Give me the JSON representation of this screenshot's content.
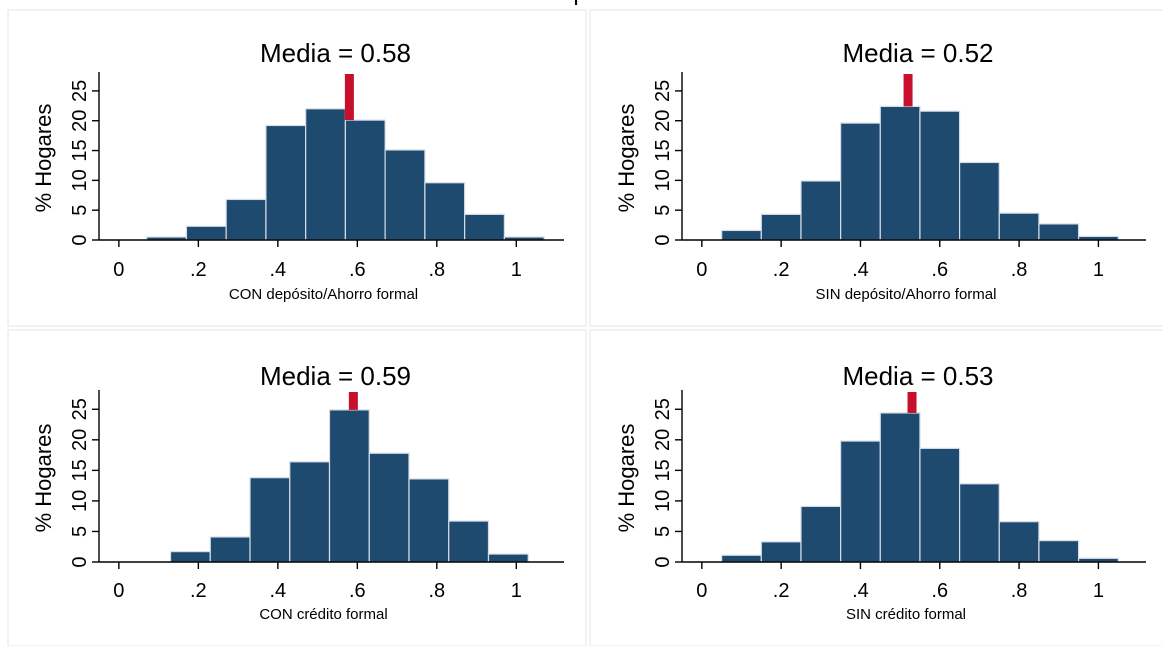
{
  "figure": {
    "top_title": "p",
    "colors": {
      "bar": "#1f4a70",
      "bar_edge": "#d6dde6",
      "mean_marker": "#c8102e",
      "panel_border": "#e6e6e6"
    }
  },
  "chart_data": [
    {
      "type": "bar",
      "title": "Media = 0.58",
      "xlabel": "CON depósito/Ahorro formal",
      "ylabel": "% Hogares",
      "x_ticks": [
        "0",
        ".2",
        ".4",
        ".6",
        ".8",
        "1"
      ],
      "y_ticks": [
        "0",
        "5",
        "10",
        "15",
        "20",
        "25"
      ],
      "xlim": [
        -0.05,
        1.12
      ],
      "ylim": [
        0,
        27.5
      ],
      "bins": [
        {
          "x0": 0.07,
          "x1": 0.17,
          "value": 0.5
        },
        {
          "x0": 0.17,
          "x1": 0.27,
          "value": 2.3
        },
        {
          "x0": 0.27,
          "x1": 0.37,
          "value": 6.8
        },
        {
          "x0": 0.37,
          "x1": 0.47,
          "value": 19.2
        },
        {
          "x0": 0.47,
          "x1": 0.57,
          "value": 22.0
        },
        {
          "x0": 0.57,
          "x1": 0.67,
          "value": 20.1
        },
        {
          "x0": 0.67,
          "x1": 0.77,
          "value": 15.1
        },
        {
          "x0": 0.77,
          "x1": 0.87,
          "value": 9.6
        },
        {
          "x0": 0.87,
          "x1": 0.97,
          "value": 4.3
        },
        {
          "x0": 0.97,
          "x1": 1.07,
          "value": 0.5
        }
      ],
      "mean": 0.58
    },
    {
      "type": "bar",
      "title": "Media = 0.52",
      "xlabel": "SIN depósito/Ahorro formal",
      "ylabel": "% Hogares",
      "x_ticks": [
        "0",
        ".2",
        ".4",
        ".6",
        ".8",
        "1"
      ],
      "y_ticks": [
        "0",
        "5",
        "10",
        "15",
        "20",
        "25"
      ],
      "xlim": [
        -0.05,
        1.12
      ],
      "ylim": [
        0,
        27.5
      ],
      "bins": [
        {
          "x0": 0.05,
          "x1": 0.15,
          "value": 1.6
        },
        {
          "x0": 0.15,
          "x1": 0.25,
          "value": 4.3
        },
        {
          "x0": 0.25,
          "x1": 0.35,
          "value": 9.9
        },
        {
          "x0": 0.35,
          "x1": 0.45,
          "value": 19.6
        },
        {
          "x0": 0.45,
          "x1": 0.55,
          "value": 22.4
        },
        {
          "x0": 0.55,
          "x1": 0.65,
          "value": 21.6
        },
        {
          "x0": 0.65,
          "x1": 0.75,
          "value": 13.0
        },
        {
          "x0": 0.75,
          "x1": 0.85,
          "value": 4.5
        },
        {
          "x0": 0.85,
          "x1": 0.95,
          "value": 2.7
        },
        {
          "x0": 0.95,
          "x1": 1.05,
          "value": 0.6
        }
      ],
      "mean": 0.52
    },
    {
      "type": "bar",
      "title": "Media = 0.59",
      "xlabel": "CON crédito formal",
      "ylabel": "% Hogares",
      "x_ticks": [
        "0",
        ".2",
        ".4",
        ".6",
        ".8",
        "1"
      ],
      "y_ticks": [
        "0",
        "5",
        "10",
        "15",
        "20",
        "25"
      ],
      "xlim": [
        -0.05,
        1.12
      ],
      "ylim": [
        0,
        27.5
      ],
      "bins": [
        {
          "x0": 0.13,
          "x1": 0.23,
          "value": 1.7
        },
        {
          "x0": 0.23,
          "x1": 0.33,
          "value": 4.1
        },
        {
          "x0": 0.33,
          "x1": 0.43,
          "value": 13.8
        },
        {
          "x0": 0.43,
          "x1": 0.53,
          "value": 16.4
        },
        {
          "x0": 0.53,
          "x1": 0.63,
          "value": 24.9
        },
        {
          "x0": 0.63,
          "x1": 0.73,
          "value": 17.8
        },
        {
          "x0": 0.73,
          "x1": 0.83,
          "value": 13.6
        },
        {
          "x0": 0.83,
          "x1": 0.93,
          "value": 6.7
        },
        {
          "x0": 0.93,
          "x1": 1.03,
          "value": 1.3
        }
      ],
      "mean": 0.59
    },
    {
      "type": "bar",
      "title": "Media = 0.53",
      "xlabel": "SIN crédito formal",
      "ylabel": "% Hogares",
      "x_ticks": [
        "0",
        ".2",
        ".4",
        ".6",
        ".8",
        "1"
      ],
      "y_ticks": [
        "0",
        "5",
        "10",
        "15",
        "20",
        "25"
      ],
      "xlim": [
        -0.05,
        1.12
      ],
      "ylim": [
        0,
        27.5
      ],
      "bins": [
        {
          "x0": 0.05,
          "x1": 0.15,
          "value": 1.1
        },
        {
          "x0": 0.15,
          "x1": 0.25,
          "value": 3.3
        },
        {
          "x0": 0.25,
          "x1": 0.35,
          "value": 9.1
        },
        {
          "x0": 0.35,
          "x1": 0.45,
          "value": 19.8
        },
        {
          "x0": 0.45,
          "x1": 0.55,
          "value": 24.4
        },
        {
          "x0": 0.55,
          "x1": 0.65,
          "value": 18.6
        },
        {
          "x0": 0.65,
          "x1": 0.75,
          "value": 12.8
        },
        {
          "x0": 0.75,
          "x1": 0.85,
          "value": 6.6
        },
        {
          "x0": 0.85,
          "x1": 0.95,
          "value": 3.5
        },
        {
          "x0": 0.95,
          "x1": 1.05,
          "value": 0.6
        }
      ],
      "mean": 0.53
    }
  ]
}
